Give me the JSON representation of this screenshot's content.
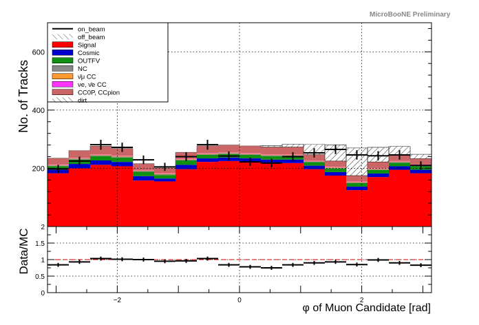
{
  "header": {
    "preliminary": "MicroBooNE Preliminary"
  },
  "chart_data": [
    {
      "type": "stacked-histogram",
      "ylabel": "No. of Tracks",
      "ylim": [
        0,
        700
      ],
      "y_ticks": [
        200,
        400,
        600
      ],
      "x_edges": [
        -3.1416,
        -2.7925,
        -2.4435,
        -2.0944,
        -1.7453,
        -1.3963,
        -1.0472,
        -0.6981,
        -0.3491,
        0.0,
        0.3491,
        0.6981,
        1.0472,
        1.3963,
        1.7453,
        2.0944,
        2.4435,
        2.7925,
        3.1416
      ],
      "grid": true,
      "legend_position": "top-left",
      "legend": [
        {
          "label": "on_beam",
          "style": "line",
          "color": "#000000"
        },
        {
          "label": "off_beam",
          "style": "hatch",
          "color": "#000000"
        },
        {
          "label": "Signal",
          "style": "fill",
          "color": "#ff0000"
        },
        {
          "label": "Cosmic",
          "style": "fill",
          "color": "#0000cc"
        },
        {
          "label": "OUTFV",
          "style": "fill",
          "color": "#109010"
        },
        {
          "label": "NC",
          "style": "fill",
          "color": "#888888"
        },
        {
          "label": "ν̄μ CC",
          "style": "fill",
          "color": "#ff9933"
        },
        {
          "label": "νe, ν̄e CC",
          "style": "fill",
          "color": "#ff33ff"
        },
        {
          "label": "CC0P, CCpion",
          "style": "fill",
          "color": "#cc6666"
        },
        {
          "label": "dirt",
          "style": "hatch",
          "color": "#000000"
        }
      ],
      "stacks": [
        {
          "name": "Signal",
          "color": "#ff0000",
          "values": [
            183,
            200,
            212,
            207,
            158,
            155,
            197,
            222,
            225,
            222,
            218,
            218,
            197,
            175,
            125,
            170,
            195,
            183
          ]
        },
        {
          "name": "Cosmic",
          "color": "#0000cc",
          "values": [
            12,
            15,
            15,
            15,
            15,
            10,
            15,
            12,
            12,
            12,
            12,
            12,
            12,
            12,
            12,
            12,
            12,
            12
          ]
        },
        {
          "name": "OUTFV",
          "color": "#109010",
          "values": [
            12,
            15,
            15,
            15,
            15,
            12,
            15,
            12,
            12,
            12,
            12,
            12,
            12,
            12,
            12,
            12,
            12,
            12
          ]
        },
        {
          "name": "NC",
          "color": "#888888",
          "values": [
            3,
            3,
            3,
            3,
            3,
            3,
            3,
            3,
            3,
            3,
            3,
            3,
            3,
            3,
            3,
            3,
            3,
            3
          ]
        },
        {
          "name": "ν̄μ CC",
          "color": "#ff9933",
          "values": [
            2,
            2,
            2,
            2,
            2,
            2,
            2,
            2,
            2,
            2,
            2,
            2,
            2,
            2,
            2,
            2,
            2,
            2
          ]
        },
        {
          "name": "νe, ν̄e CC",
          "color": "#ff33ff",
          "values": [
            1,
            1,
            1,
            1,
            1,
            1,
            1,
            1,
            1,
            1,
            1,
            1,
            1,
            1,
            1,
            1,
            1,
            1
          ]
        },
        {
          "name": "CC0P, CCpion",
          "color": "#cc6666",
          "values": [
            22,
            25,
            28,
            25,
            22,
            18,
            22,
            25,
            25,
            25,
            25,
            25,
            20,
            20,
            20,
            22,
            20,
            20
          ]
        },
        {
          "name": "off_beam",
          "color": "hatch",
          "values": [
            0,
            0,
            0,
            0,
            0,
            0,
            0,
            0,
            0,
            0,
            5,
            10,
            35,
            55,
            95,
            50,
            30,
            15
          ]
        }
      ],
      "data_points": {
        "name": "on_beam",
        "values": [
          198,
          225,
          281,
          272,
          229,
          205,
          240,
          281,
          242,
          222,
          218,
          240,
          253,
          265,
          246,
          243,
          246,
          210
        ],
        "errors": [
          14,
          15,
          17,
          16,
          15,
          14,
          15,
          17,
          16,
          15,
          15,
          15,
          16,
          16,
          16,
          16,
          16,
          14
        ]
      }
    },
    {
      "type": "ratio",
      "xlabel": "φ of Muon Candidate [rad]",
      "ylabel": "Data/MC",
      "ylim": [
        0,
        2
      ],
      "y_ticks": [
        "0",
        "0.5",
        "1",
        "1.5",
        "2"
      ],
      "x_ticks": [
        "−2",
        "0",
        "2"
      ],
      "x_tick_values": [
        -2,
        0,
        2
      ],
      "reference_line": 1,
      "values": [
        0.84,
        0.93,
        1.03,
        1.01,
        1.0,
        0.95,
        0.96,
        1.03,
        0.84,
        0.78,
        0.75,
        0.84,
        0.9,
        0.93,
        0.85,
        0.99,
        0.9,
        0.83
      ],
      "errors": [
        0.06,
        0.06,
        0.06,
        0.06,
        0.06,
        0.06,
        0.06,
        0.06,
        0.06,
        0.06,
        0.06,
        0.06,
        0.06,
        0.06,
        0.06,
        0.06,
        0.06,
        0.06
      ]
    }
  ]
}
